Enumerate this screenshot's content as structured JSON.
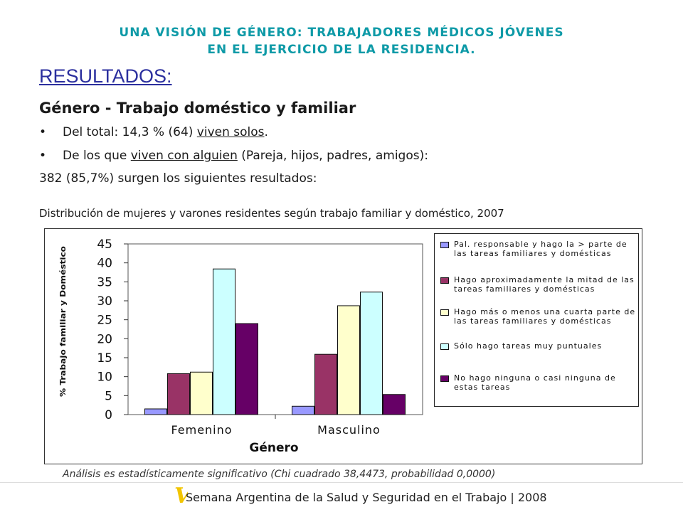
{
  "header": {
    "line1": "UNA VISIÓN DE GÉNERO: TRABAJADORES MÉDICOS JÓVENES",
    "line2": "EN EL EJERCICIO DE LA RESIDENCIA."
  },
  "section_title": "RESULTADOS:",
  "subtitle": "Género - Trabajo doméstico y familiar",
  "bullets": [
    {
      "pre": "Del total: 14,3 % (64) ",
      "u": "viven solos",
      "post": "."
    },
    {
      "pre": "De los que ",
      "u": "viven con alguien",
      "post": " (Pareja, hijos, padres, amigos):"
    }
  ],
  "result_line": "382 (85,7%) surgen los siguientes resultados:",
  "caption": "Distribución de mujeres y varones residentes según trabajo familiar y doméstico, 2007",
  "chart_data": {
    "type": "bar",
    "title": "",
    "xlabel": "Género",
    "ylabel": "% Trabajo familiar y Doméstico",
    "ylim": [
      0,
      45
    ],
    "yticks": [
      0,
      5,
      10,
      15,
      20,
      25,
      30,
      35,
      40,
      45
    ],
    "grid": false,
    "legend_position": "right",
    "categories": [
      "Femenino",
      "Masculino"
    ],
    "series": [
      {
        "name": "Pal. responsable y hago la > parte de las tareas familiares y domésticas",
        "color": "#9999ff",
        "values": [
          1.5,
          2.2
        ]
      },
      {
        "name": "Hago aproximadamente la mitad de las tareas familiares y domésticas",
        "color": "#993366",
        "values": [
          10.8,
          15.9
        ]
      },
      {
        "name": "Hago más o menos una cuarta parte de las tareas familiares y domésticas",
        "color": "#ffffcc",
        "values": [
          11.2,
          28.7
        ]
      },
      {
        "name": "Sólo hago tareas muy puntuales",
        "color": "#ccffff",
        "values": [
          38.4,
          32.3
        ]
      },
      {
        "name": "No hago ninguna o casi ninguna de estas tareas",
        "color": "#660066",
        "values": [
          24.0,
          5.3
        ]
      }
    ]
  },
  "note": "Análisis es estadísticamente significativo (Chi cuadrado 38,4473, probabilidad 0,0000)",
  "footer": {
    "logo_letter": "V",
    "text": "Semana Argentina de la Salud y Seguridad en el Trabajo | 2008"
  }
}
